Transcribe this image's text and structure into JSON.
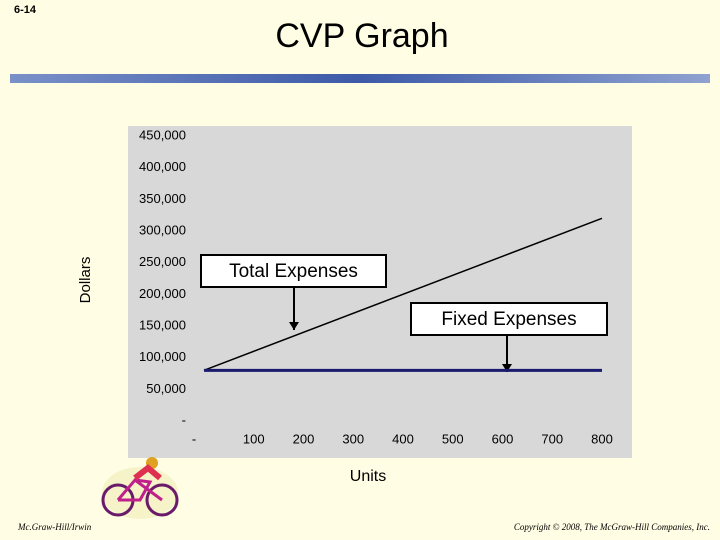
{
  "slide_number": "6-14",
  "footer_left": "Mc.Graw-Hill/Irwin",
  "footer_right": "Copyright © 2008, The McGraw-Hill Companies, Inc.",
  "chart_data": {
    "type": "line",
    "title": "CVP Graph",
    "x_label": "Units",
    "y_label": "Dollars",
    "x": [
      0,
      800
    ],
    "series": [
      {
        "name": "Total Expenses",
        "color": "#000000",
        "values": [
          80000,
          320000
        ]
      },
      {
        "name": "Fixed Expenses",
        "color": "#1a1a6e",
        "values": [
          80000,
          80000
        ]
      }
    ],
    "xlim": [
      0,
      800
    ],
    "xticks": [
      {
        "value": 0,
        "label": "-"
      },
      100,
      200,
      300,
      400,
      500,
      600,
      700,
      800
    ],
    "ylim": [
      0,
      450000
    ],
    "yticks": [
      {
        "value": 0,
        "label": "-"
      },
      {
        "value": 50000,
        "label": "50,000"
      },
      {
        "value": 100000,
        "label": "100,000"
      },
      {
        "value": 150000,
        "label": "150,000"
      },
      {
        "value": 200000,
        "label": "200,000"
      },
      {
        "value": 250000,
        "label": "250,000"
      },
      {
        "value": 300000,
        "label": "300,000"
      },
      {
        "value": 350000,
        "label": "350,000"
      },
      {
        "value": 400000,
        "label": "400,000"
      },
      {
        "value": 450000,
        "label": "450,000"
      }
    ],
    "grid": false
  }
}
